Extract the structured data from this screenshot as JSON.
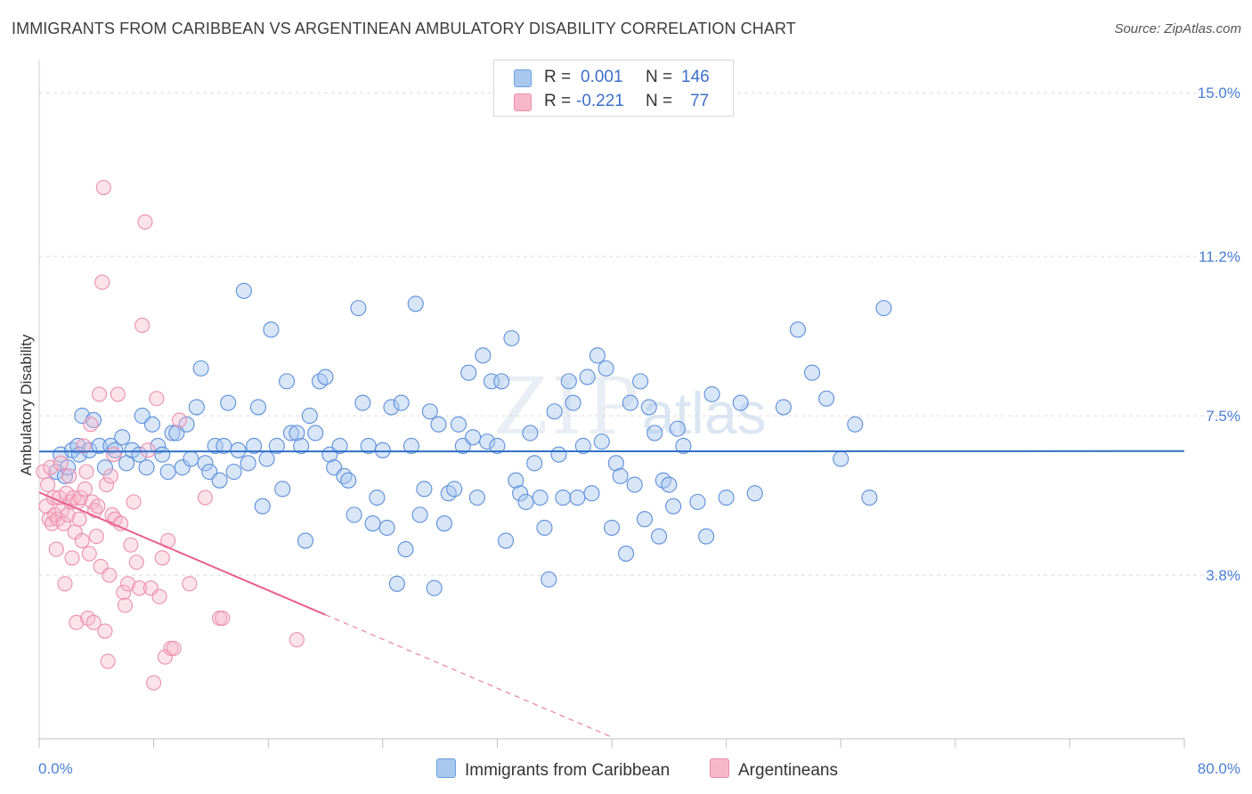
{
  "title": "IMMIGRANTS FROM CARIBBEAN VS ARGENTINEAN AMBULATORY DISABILITY CORRELATION CHART",
  "source": "Source: ZipAtlas.com",
  "watermark": {
    "main": "ZIP",
    "sub": "atlas"
  },
  "legend": {
    "rows": [
      {
        "r_label": "R =",
        "r_value": "0.001",
        "n_label": "N =",
        "n_value": "146",
        "color": "#a9c8f0"
      },
      {
        "r_label": "R =",
        "r_value": "-0.221",
        "n_label": "N =",
        "n_value": "77",
        "color": "#f8b8cb"
      }
    ]
  },
  "bottom_legend": [
    {
      "label": "Immigrants from Caribbean",
      "color": "#a9c8f0"
    },
    {
      "label": "Argentineans",
      "color": "#f8b8cb"
    }
  ],
  "chart_data": {
    "type": "scatter",
    "title": "IMMIGRANTS FROM CARIBBEAN VS ARGENTINEAN AMBULATORY DISABILITY CORRELATION CHART",
    "xlabel": "",
    "ylabel": "Ambulatory Disability",
    "xlim": [
      0,
      80
    ],
    "ylim": [
      0,
      15.5
    ],
    "x_tick_labels": [
      "0.0%",
      "80.0%"
    ],
    "y_ticks": [
      3.8,
      7.5,
      11.2,
      15.0
    ],
    "y_tick_labels": [
      "3.8%",
      "7.5%",
      "11.2%",
      "15.0%"
    ],
    "grid": "dashed horizontal",
    "legend_position": "top-center",
    "colors": {
      "blue": "#4a82d8",
      "blue_fill": "#a9c8f0",
      "pink": "#e8608e",
      "pink_fill": "#f8b8cb"
    },
    "series": [
      {
        "name": "Immigrants from Caribbean",
        "trend": {
          "x": [
            0,
            80
          ],
          "y": [
            6.67,
            6.68
          ]
        },
        "points": [
          [
            1.2,
            6.2
          ],
          [
            1.5,
            6.6
          ],
          [
            1.8,
            6.1
          ],
          [
            2.0,
            6.3
          ],
          [
            2.3,
            6.7
          ],
          [
            2.7,
            6.8
          ],
          [
            2.8,
            6.6
          ],
          [
            3.0,
            7.5
          ],
          [
            3.5,
            6.7
          ],
          [
            3.8,
            7.4
          ],
          [
            4.2,
            6.8
          ],
          [
            4.6,
            6.3
          ],
          [
            5.0,
            6.8
          ],
          [
            5.3,
            6.7
          ],
          [
            5.8,
            7.0
          ],
          [
            6.1,
            6.4
          ],
          [
            6.5,
            6.7
          ],
          [
            7.0,
            6.6
          ],
          [
            7.2,
            7.5
          ],
          [
            7.5,
            6.3
          ],
          [
            7.9,
            7.3
          ],
          [
            8.3,
            6.8
          ],
          [
            8.6,
            6.6
          ],
          [
            9.0,
            6.2
          ],
          [
            9.3,
            7.1
          ],
          [
            9.6,
            7.1
          ],
          [
            10.0,
            6.3
          ],
          [
            10.3,
            7.3
          ],
          [
            10.6,
            6.5
          ],
          [
            11.0,
            7.7
          ],
          [
            11.3,
            8.6
          ],
          [
            11.6,
            6.4
          ],
          [
            11.9,
            6.2
          ],
          [
            12.3,
            6.8
          ],
          [
            12.6,
            6.0
          ],
          [
            12.9,
            6.8
          ],
          [
            13.2,
            7.8
          ],
          [
            13.6,
            6.2
          ],
          [
            13.9,
            6.7
          ],
          [
            14.3,
            10.4
          ],
          [
            14.6,
            6.4
          ],
          [
            15.0,
            6.8
          ],
          [
            15.3,
            7.7
          ],
          [
            15.6,
            5.4
          ],
          [
            15.9,
            6.5
          ],
          [
            16.2,
            9.5
          ],
          [
            16.6,
            6.8
          ],
          [
            17.0,
            5.8
          ],
          [
            17.3,
            8.3
          ],
          [
            17.6,
            7.1
          ],
          [
            18.0,
            7.1
          ],
          [
            18.3,
            6.8
          ],
          [
            18.6,
            4.6
          ],
          [
            18.9,
            7.5
          ],
          [
            19.3,
            7.1
          ],
          [
            19.6,
            8.3
          ],
          [
            20.0,
            8.4
          ],
          [
            20.3,
            6.6
          ],
          [
            20.6,
            6.3
          ],
          [
            21.0,
            6.8
          ],
          [
            21.3,
            6.1
          ],
          [
            21.6,
            6.0
          ],
          [
            22.0,
            5.2
          ],
          [
            22.3,
            10.0
          ],
          [
            22.6,
            7.8
          ],
          [
            23.0,
            6.8
          ],
          [
            23.3,
            5.0
          ],
          [
            23.6,
            5.6
          ],
          [
            24.0,
            6.7
          ],
          [
            24.3,
            4.9
          ],
          [
            24.6,
            7.7
          ],
          [
            25.0,
            3.6
          ],
          [
            25.3,
            7.8
          ],
          [
            25.6,
            4.4
          ],
          [
            26.0,
            6.8
          ],
          [
            26.3,
            10.1
          ],
          [
            26.6,
            5.2
          ],
          [
            26.9,
            5.8
          ],
          [
            27.3,
            7.6
          ],
          [
            27.6,
            3.5
          ],
          [
            27.9,
            7.3
          ],
          [
            28.3,
            5.0
          ],
          [
            28.6,
            5.7
          ],
          [
            29.0,
            5.8
          ],
          [
            29.3,
            7.3
          ],
          [
            29.6,
            6.8
          ],
          [
            30.0,
            8.5
          ],
          [
            30.3,
            7.0
          ],
          [
            30.6,
            5.6
          ],
          [
            31.0,
            8.9
          ],
          [
            31.3,
            6.9
          ],
          [
            31.6,
            8.3
          ],
          [
            32.0,
            6.8
          ],
          [
            32.3,
            8.3
          ],
          [
            32.6,
            4.6
          ],
          [
            33.0,
            9.3
          ],
          [
            33.3,
            6.0
          ],
          [
            33.6,
            5.7
          ],
          [
            34.0,
            5.5
          ],
          [
            34.3,
            7.1
          ],
          [
            34.6,
            6.4
          ],
          [
            35.0,
            5.6
          ],
          [
            35.3,
            4.9
          ],
          [
            35.6,
            3.7
          ],
          [
            36.0,
            7.6
          ],
          [
            36.3,
            6.6
          ],
          [
            36.6,
            5.6
          ],
          [
            37.0,
            8.3
          ],
          [
            37.3,
            7.8
          ],
          [
            37.6,
            5.6
          ],
          [
            38.0,
            6.8
          ],
          [
            38.3,
            8.4
          ],
          [
            38.6,
            5.7
          ],
          [
            39.0,
            8.9
          ],
          [
            39.3,
            6.9
          ],
          [
            39.6,
            8.6
          ],
          [
            40.0,
            4.9
          ],
          [
            40.3,
            6.4
          ],
          [
            40.6,
            6.1
          ],
          [
            41.0,
            4.3
          ],
          [
            41.3,
            7.8
          ],
          [
            41.6,
            5.9
          ],
          [
            42.0,
            8.3
          ],
          [
            42.3,
            5.1
          ],
          [
            42.6,
            7.7
          ],
          [
            43.0,
            7.1
          ],
          [
            43.3,
            4.7
          ],
          [
            43.6,
            6.0
          ],
          [
            44.0,
            5.9
          ],
          [
            44.3,
            5.4
          ],
          [
            44.6,
            7.2
          ],
          [
            45.0,
            6.8
          ],
          [
            46.0,
            5.5
          ],
          [
            46.6,
            4.7
          ],
          [
            47.0,
            8.0
          ],
          [
            48.0,
            5.6
          ],
          [
            49.0,
            7.8
          ],
          [
            50.0,
            5.7
          ],
          [
            52.0,
            7.7
          ],
          [
            53.0,
            9.5
          ],
          [
            54.0,
            8.5
          ],
          [
            55.0,
            7.9
          ],
          [
            56.0,
            6.5
          ],
          [
            57.0,
            7.3
          ],
          [
            58.0,
            5.6
          ],
          [
            59.0,
            10.0
          ]
        ]
      },
      {
        "name": "Argentineans",
        "trend": {
          "x": [
            0,
            20,
            40
          ],
          "y": [
            5.72,
            2.88,
            0.04
          ]
        },
        "points": [
          [
            0.3,
            6.2
          ],
          [
            0.5,
            5.4
          ],
          [
            0.6,
            5.9
          ],
          [
            0.7,
            5.1
          ],
          [
            0.8,
            6.3
          ],
          [
            0.9,
            5.0
          ],
          [
            1.0,
            5.6
          ],
          [
            1.1,
            5.2
          ],
          [
            1.2,
            4.4
          ],
          [
            1.3,
            5.1
          ],
          [
            1.4,
            5.6
          ],
          [
            1.5,
            6.4
          ],
          [
            1.6,
            5.3
          ],
          [
            1.7,
            5.0
          ],
          [
            1.8,
            3.6
          ],
          [
            1.9,
            5.7
          ],
          [
            2.0,
            5.2
          ],
          [
            2.1,
            6.1
          ],
          [
            2.2,
            5.5
          ],
          [
            2.3,
            4.2
          ],
          [
            2.4,
            5.6
          ],
          [
            2.5,
            4.8
          ],
          [
            2.6,
            2.7
          ],
          [
            2.7,
            5.5
          ],
          [
            2.8,
            5.1
          ],
          [
            2.9,
            5.6
          ],
          [
            3.0,
            4.6
          ],
          [
            3.1,
            6.8
          ],
          [
            3.2,
            5.8
          ],
          [
            3.3,
            6.2
          ],
          [
            3.4,
            2.8
          ],
          [
            3.5,
            4.3
          ],
          [
            3.6,
            7.3
          ],
          [
            3.7,
            5.5
          ],
          [
            3.8,
            2.7
          ],
          [
            3.9,
            5.3
          ],
          [
            4.0,
            4.7
          ],
          [
            4.1,
            5.4
          ],
          [
            4.2,
            8.0
          ],
          [
            4.3,
            4.0
          ],
          [
            4.4,
            10.6
          ],
          [
            4.5,
            12.8
          ],
          [
            4.6,
            2.5
          ],
          [
            4.7,
            5.9
          ],
          [
            4.8,
            1.8
          ],
          [
            4.9,
            3.8
          ],
          [
            5.0,
            6.1
          ],
          [
            5.1,
            5.2
          ],
          [
            5.2,
            6.6
          ],
          [
            5.3,
            5.1
          ],
          [
            5.5,
            8.0
          ],
          [
            5.7,
            5.0
          ],
          [
            5.9,
            3.4
          ],
          [
            6.0,
            3.1
          ],
          [
            6.2,
            3.6
          ],
          [
            6.4,
            4.5
          ],
          [
            6.6,
            5.5
          ],
          [
            6.8,
            4.1
          ],
          [
            7.0,
            3.5
          ],
          [
            7.2,
            9.6
          ],
          [
            7.4,
            12.0
          ],
          [
            7.6,
            6.7
          ],
          [
            7.8,
            3.5
          ],
          [
            8.0,
            1.3
          ],
          [
            8.2,
            7.9
          ],
          [
            8.4,
            3.3
          ],
          [
            8.6,
            4.2
          ],
          [
            8.8,
            1.9
          ],
          [
            9.0,
            4.6
          ],
          [
            9.2,
            2.1
          ],
          [
            9.8,
            7.4
          ],
          [
            10.5,
            3.6
          ],
          [
            11.6,
            5.6
          ],
          [
            12.6,
            2.8
          ],
          [
            12.8,
            2.8
          ],
          [
            18.0,
            2.3
          ],
          [
            9.4,
            2.1
          ]
        ]
      }
    ]
  }
}
